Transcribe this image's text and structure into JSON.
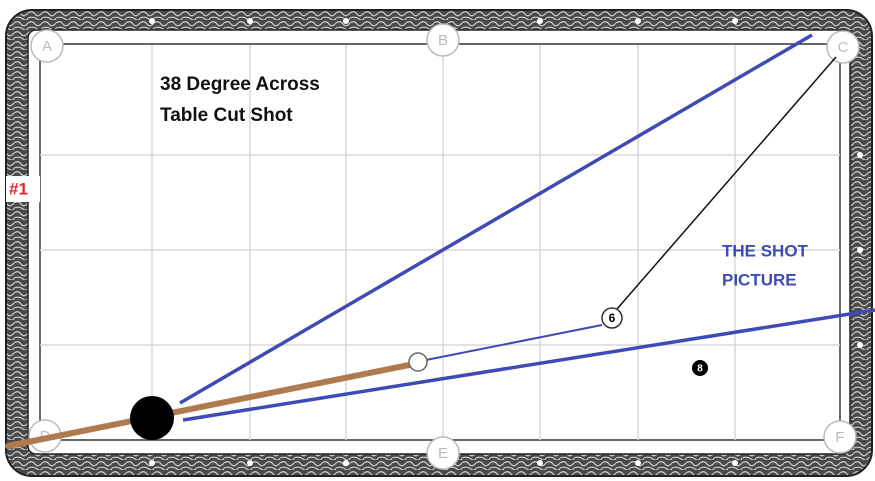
{
  "title": {
    "lines": [
      "38 Degree Across",
      "Table Cut Shot"
    ]
  },
  "pockets": [
    {
      "label": "A"
    },
    {
      "label": "B"
    },
    {
      "label": "C"
    },
    {
      "label": "D"
    },
    {
      "label": "E"
    },
    {
      "label": "F"
    }
  ],
  "side_label": "#1",
  "annotation": {
    "lines": [
      "THE SHOT",
      "PICTURE"
    ]
  },
  "balls": [
    {
      "label": "6"
    },
    {
      "label": "8"
    }
  ]
}
